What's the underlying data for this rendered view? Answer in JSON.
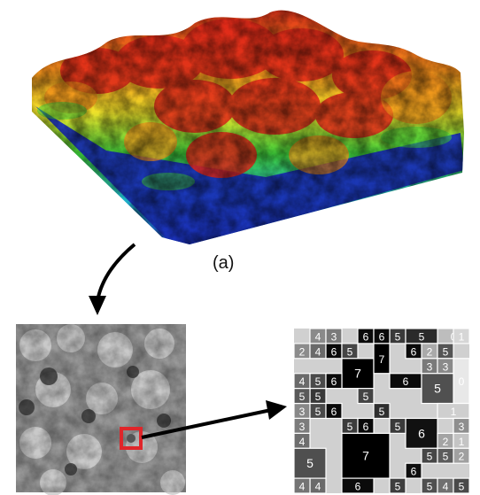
{
  "figure": {
    "panel_a_label": "(a)",
    "colors": {
      "low": "#1a2fb5",
      "mid_low": "#1fb7c9",
      "mid": "#3fcf3a",
      "mid_high": "#f0e12a",
      "high_orange": "#f08a1a",
      "high": "#e0261a",
      "highlight_box": "#e0262a",
      "arrow": "#000000"
    },
    "icons": [
      "curved-arrow-icon",
      "straight-arrow-icon"
    ]
  },
  "grid": {
    "cells": [
      {
        "label": "0",
        "shade": "#bdbdbd"
      },
      {
        "label": "4",
        "shade": "#8a8a8a"
      },
      {
        "label": "3",
        "shade": "#7a7a7a"
      },
      {
        "label": "6",
        "shade": "#0a0a0a"
      },
      {
        "label": "5",
        "shade": "#3a3a3a"
      },
      {
        "label": "6",
        "shade": "#0a0a0a"
      },
      {
        "label": "5",
        "shade": "#2a2a2a"
      },
      {
        "label": "1",
        "shade": "#d6d6d6"
      },
      {
        "label": "2",
        "shade": "#8c8c8c"
      },
      {
        "label": "4",
        "shade": "#6a6a6a"
      },
      {
        "label": "6",
        "shade": "#0a0a0a"
      },
      {
        "label": "5",
        "shade": "#454545"
      },
      {
        "label": "7",
        "shade": "#000000"
      },
      {
        "label": "7",
        "shade": "#000000"
      },
      {
        "label": "2",
        "shade": "#aaaaaa"
      },
      {
        "label": "5",
        "shade": "#555555"
      },
      {
        "label": "3",
        "shade": "#7a7a7a"
      },
      {
        "label": "6",
        "shade": "#0a0a0a"
      },
      {
        "label": "3",
        "shade": "#8a8a8a"
      },
      {
        "label": "4",
        "shade": "#6a6a6a"
      },
      {
        "label": "5",
        "shade": "#4a4a4a"
      },
      {
        "label": "6",
        "shade": "#0a0a0a"
      },
      {
        "label": "5",
        "shade": "#444444"
      },
      {
        "label": "6",
        "shade": "#0a0a0a"
      },
      {
        "label": "0",
        "shade": "#e8e8e8"
      },
      {
        "label": "5",
        "shade": "#505050"
      },
      {
        "label": "5",
        "shade": "#383838"
      },
      {
        "label": "3",
        "shade": "#888888"
      },
      {
        "label": "5",
        "shade": "#5a5a5a"
      },
      {
        "label": "5",
        "shade": "#4a4a4a"
      },
      {
        "label": "6",
        "shade": "#0a0a0a"
      },
      {
        "label": "1",
        "shade": "#cfcfcf"
      },
      {
        "label": "3",
        "shade": "#7c7c7c"
      },
      {
        "label": "5",
        "shade": "#3c3c3c"
      },
      {
        "label": "6",
        "shade": "#0a0a0a"
      },
      {
        "label": "5",
        "shade": "#2f2f2f"
      },
      {
        "label": "3",
        "shade": "#8e8e8e"
      },
      {
        "label": "4",
        "shade": "#6e6e6e"
      },
      {
        "label": "6",
        "shade": "#111111"
      },
      {
        "label": "5",
        "shade": "#3a3a3a"
      },
      {
        "label": "2",
        "shade": "#a4a4a4"
      },
      {
        "label": "1",
        "shade": "#c4c4c4"
      },
      {
        "label": "2",
        "shade": "#a0a0a0"
      },
      {
        "label": "7",
        "shade": "#000000"
      },
      {
        "label": "5",
        "shade": "#4f4f4f"
      },
      {
        "label": "5",
        "shade": "#464646"
      },
      {
        "label": "5",
        "shade": "#5c5c5c"
      },
      {
        "label": "6",
        "shade": "#0f0f0f"
      },
      {
        "label": "4",
        "shade": "#6a6a6a"
      },
      {
        "label": "4",
        "shade": "#747474"
      },
      {
        "label": "6",
        "shade": "#0b0b0b"
      },
      {
        "label": "5",
        "shade": "#3e3e3e"
      },
      {
        "label": "5",
        "shade": "#505050"
      },
      {
        "label": "4",
        "shade": "#707070"
      },
      {
        "label": "5",
        "shade": "#4a4a4a"
      }
    ]
  }
}
